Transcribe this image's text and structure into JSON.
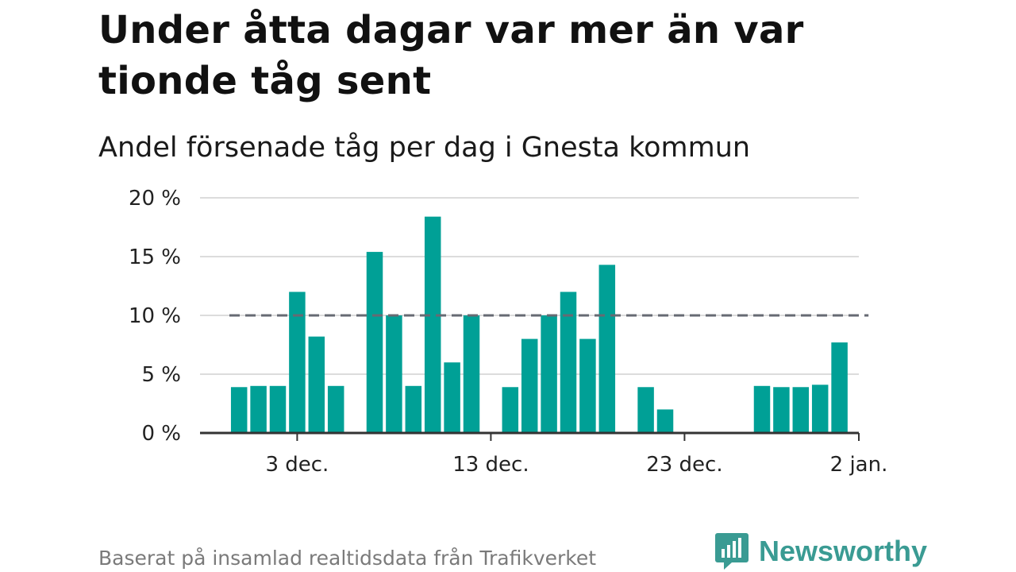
{
  "headline": "Under åtta dagar var mer än var tionde tåg sent",
  "subtitle": "Andel försenade tåg per dag i Gnesta kommun",
  "footer": "Baserat på insamlad realtidsdata från Trafikverket",
  "brand": {
    "name": "Newsworthy",
    "icon": "newsworthy-logo-icon",
    "color": "#3a9b93"
  },
  "colors": {
    "bar": "#00a096",
    "threshold": "#666a73",
    "grid": "#dcdcdc",
    "axis": "#333333"
  },
  "chart_data": {
    "type": "bar",
    "title": "Under åtta dagar var mer än var tionde tåg sent",
    "subtitle": "Andel försenade tåg per dag i Gnesta kommun",
    "xlabel": "",
    "ylabel": "",
    "x_unit": "day",
    "x_domain": [
      "2023-11-29",
      "2024-01-02"
    ],
    "ylim": [
      0,
      20
    ],
    "y_ticks": [
      0,
      5,
      10,
      15,
      20
    ],
    "y_tick_labels": [
      "0 %",
      "5 %",
      "10 %",
      "15 %",
      "20 %"
    ],
    "x_ticks": [
      "2023-12-03",
      "2023-12-13",
      "2023-12-23",
      "2024-01-02"
    ],
    "x_tick_labels": [
      "3 dec.",
      "13 dec.",
      "23 dec.",
      "2 jan."
    ],
    "threshold": {
      "value": 10,
      "style": "dashed",
      "from": "2023-11-30",
      "to": "2024-01-01"
    },
    "grid": true,
    "legend": "none",
    "series": [
      {
        "dates": [
          "2023-11-30",
          "2023-12-01",
          "2023-12-02",
          "2023-12-03",
          "2023-12-04",
          "2023-12-05",
          "2023-12-07",
          "2023-12-08",
          "2023-12-09",
          "2023-12-10",
          "2023-12-11",
          "2023-12-12",
          "2023-12-14",
          "2023-12-15",
          "2023-12-16",
          "2023-12-17",
          "2023-12-18",
          "2023-12-19",
          "2023-12-21",
          "2023-12-22",
          "2023-12-27",
          "2023-12-28",
          "2023-12-29",
          "2023-12-30",
          "2023-12-31"
        ],
        "values": [
          3.9,
          4.0,
          4.0,
          12.0,
          8.2,
          4.0,
          15.4,
          10.0,
          4.0,
          18.4,
          6.0,
          10.0,
          3.9,
          8.0,
          10.0,
          12.0,
          8.0,
          14.3,
          3.9,
          2.0,
          4.0,
          3.9,
          3.9,
          4.1,
          7.7
        ]
      }
    ]
  }
}
